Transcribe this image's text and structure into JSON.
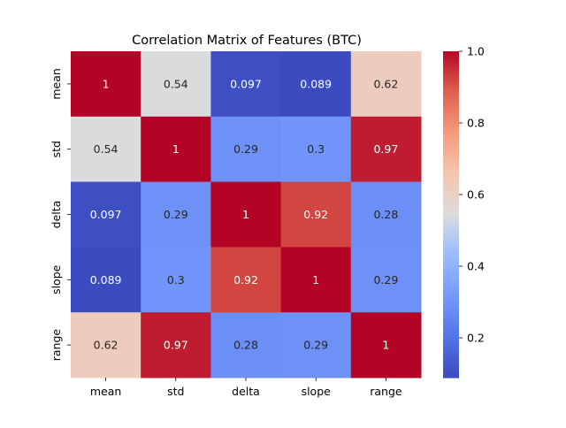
{
  "chart_data": {
    "type": "heatmap",
    "title": "Correlation Matrix of Features (BTC)",
    "xlabel": "",
    "ylabel": "",
    "x_categories": [
      "mean",
      "std",
      "delta",
      "slope",
      "range"
    ],
    "y_categories": [
      "mean",
      "std",
      "delta",
      "slope",
      "range"
    ],
    "values": [
      [
        1,
        0.54,
        0.097,
        0.089,
        0.62
      ],
      [
        0.54,
        1,
        0.29,
        0.3,
        0.97
      ],
      [
        0.097,
        0.29,
        1,
        0.92,
        0.28
      ],
      [
        0.089,
        0.3,
        0.92,
        1,
        0.29
      ],
      [
        0.62,
        0.97,
        0.28,
        0.29,
        1
      ]
    ],
    "annotations": [
      [
        "1",
        "0.54",
        "0.097",
        "0.089",
        "0.62"
      ],
      [
        "0.54",
        "1",
        "0.29",
        "0.3",
        "0.97"
      ],
      [
        "0.097",
        "0.29",
        "1",
        "0.92",
        "0.28"
      ],
      [
        "0.089",
        "0.3",
        "0.92",
        "1",
        "0.29"
      ],
      [
        "0.62",
        "0.97",
        "0.28",
        "0.29",
        "1"
      ]
    ],
    "colormap": "coolwarm",
    "colorbar": {
      "min": 0.089,
      "max": 1.0,
      "ticks": [
        0.2,
        0.4,
        0.6,
        0.8,
        1.0
      ],
      "tick_labels": [
        "0.2",
        "0.4",
        "0.6",
        "0.8",
        "1.0"
      ]
    },
    "grid": false
  }
}
